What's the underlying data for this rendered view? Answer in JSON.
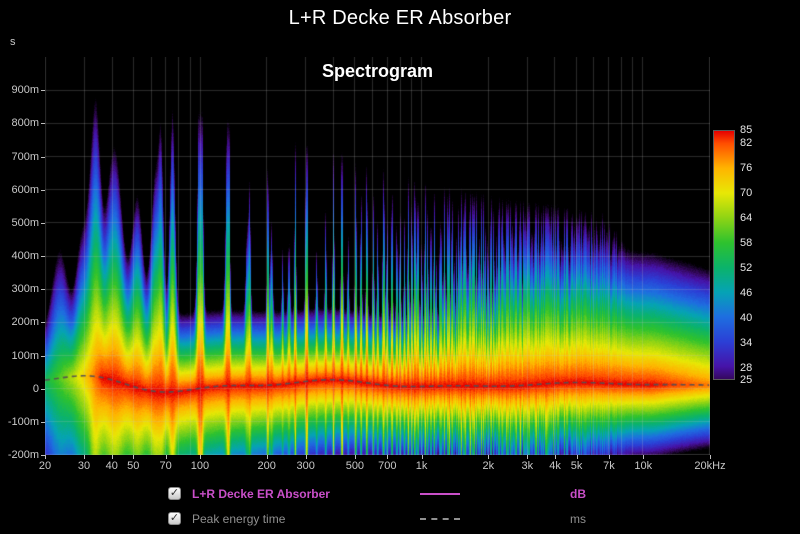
{
  "header": {
    "title": "L+R Decke ER Absorber"
  },
  "chart": {
    "title": "Spectrogram",
    "y_unit": "s"
  },
  "legend": [
    {
      "label": "L+R Decke ER Absorber",
      "unit": "dB",
      "color": "#c94fc9",
      "line": "solid",
      "checked": "✓"
    },
    {
      "label": "Peak energy time",
      "unit": "ms",
      "color": "#909090",
      "line": "dashed",
      "checked": "✓"
    }
  ],
  "chart_data": {
    "type": "heatmap",
    "subtype": "spectrogram",
    "title": "Spectrogram",
    "x_axis": {
      "scale": "log",
      "unit": "Hz",
      "min_hz": 20,
      "max_hz": 20000,
      "ticks": [
        {
          "v": 20,
          "label": "20"
        },
        {
          "v": 30,
          "label": "30"
        },
        {
          "v": 40,
          "label": "40"
        },
        {
          "v": 50,
          "label": "50"
        },
        {
          "v": 70,
          "label": "70"
        },
        {
          "v": 100,
          "label": "100"
        },
        {
          "v": 200,
          "label": "200"
        },
        {
          "v": 300,
          "label": "300"
        },
        {
          "v": 500,
          "label": "500"
        },
        {
          "v": 700,
          "label": "700"
        },
        {
          "v": 1000,
          "label": "1k"
        },
        {
          "v": 2000,
          "label": "2k"
        },
        {
          "v": 3000,
          "label": "3k"
        },
        {
          "v": 4000,
          "label": "4k"
        },
        {
          "v": 5000,
          "label": "5k"
        },
        {
          "v": 7000,
          "label": "7k"
        },
        {
          "v": 10000,
          "label": "10k"
        },
        {
          "v": 20000,
          "label": "20kHz"
        }
      ],
      "grid_hz": [
        20,
        30,
        40,
        50,
        60,
        70,
        80,
        90,
        100,
        200,
        300,
        400,
        500,
        600,
        700,
        800,
        900,
        1000,
        2000,
        3000,
        4000,
        5000,
        6000,
        7000,
        8000,
        9000,
        10000,
        20000
      ]
    },
    "y_axis": {
      "unit": "s",
      "min_ms": -200,
      "max_ms": 1000,
      "ticks": [
        {
          "v": 900,
          "label": "900m"
        },
        {
          "v": 800,
          "label": "800m"
        },
        {
          "v": 700,
          "label": "700m"
        },
        {
          "v": 600,
          "label": "600m"
        },
        {
          "v": 500,
          "label": "500m"
        },
        {
          "v": 400,
          "label": "400m"
        },
        {
          "v": 300,
          "label": "300m"
        },
        {
          "v": 200,
          "label": "200m"
        },
        {
          "v": 100,
          "label": "100m"
        },
        {
          "v": 0,
          "label": "0"
        },
        {
          "v": -100,
          "label": "-100m"
        },
        {
          "v": -200,
          "label": "-200m"
        }
      ]
    },
    "color_scale": {
      "unit": "dB",
      "stops": [
        {
          "v": 85,
          "c": "#e60000"
        },
        {
          "v": 82,
          "c": "#ff4e00"
        },
        {
          "v": 76,
          "c": "#ffb400"
        },
        {
          "v": 70,
          "c": "#e8e805"
        },
        {
          "v": 64,
          "c": "#8fd414"
        },
        {
          "v": 58,
          "c": "#2ec22e"
        },
        {
          "v": 52,
          "c": "#0bb36a"
        },
        {
          "v": 46,
          "c": "#05a3b5"
        },
        {
          "v": 40,
          "c": "#1e6ee0"
        },
        {
          "v": 34,
          "c": "#2b3fd6"
        },
        {
          "v": 28,
          "c": "#4613a8"
        },
        {
          "v": 25,
          "c": "#35085e"
        }
      ]
    },
    "model": {
      "peak_level_db": 85,
      "lf_rolloff_below_hz": 36,
      "lf_rolloff_db_per_hz": 1.9,
      "comb_spacing_hz": 33.5,
      "stripe_width_frac": 0.01,
      "tau60_base_ms_low": 430,
      "tau60_base_ms_high": 295,
      "pre_rate_db_per_ms_low": 0.075,
      "pre_rate_db_per_ms_high": 0.3,
      "peak_time_ms_nominal": 10,
      "modes": [
        {
          "f": 23,
          "w": 2.5,
          "boost": 1.5
        },
        {
          "f": 29,
          "w": 2.2,
          "boost": 1.1
        },
        {
          "f": 41,
          "w": 4.5,
          "boost": 1.9
        },
        {
          "f": 52,
          "w": 4.0,
          "boost": 1.4
        },
        {
          "f": 63,
          "w": 4.0,
          "boost": 1.8
        },
        {
          "f": 75,
          "w": 2.8,
          "boost": 2.6
        },
        {
          "f": 100,
          "w": 3.0,
          "boost": 3.2
        },
        {
          "f": 132,
          "w": 3.0,
          "boost": 1.5
        },
        {
          "f": 163,
          "w": 3.0,
          "boost": 1.1
        },
        {
          "f": 210,
          "w": 3.5,
          "boost": 1.2
        },
        {
          "f": 252,
          "w": 3.5,
          "boost": 1.0
        },
        {
          "f": 302,
          "w": 4.0,
          "boost": 1.6
        },
        {
          "f": 436,
          "w": 5.0,
          "boost": 1.0
        },
        {
          "f": 680,
          "w": 7.0,
          "boost": 0.9
        },
        {
          "f": 950,
          "w": 9.0,
          "boost": 0.8
        }
      ]
    }
  }
}
